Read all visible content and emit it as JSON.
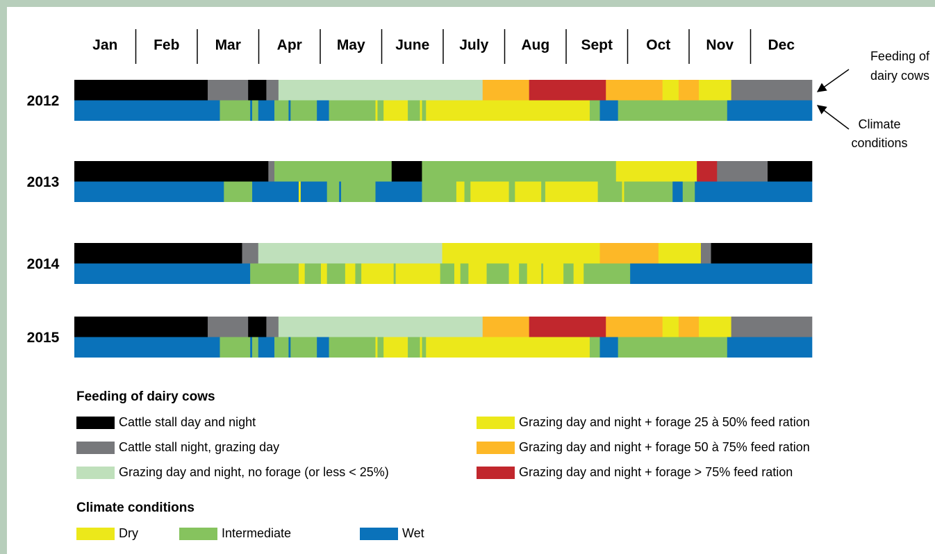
{
  "chart_data": {
    "type": "timeline",
    "months": [
      "Jan",
      "Feb",
      "Mar",
      "Apr",
      "May",
      "June",
      "July",
      "Aug",
      "Sept",
      "Oct",
      "Nov",
      "Dec"
    ],
    "xlim": [
      0,
      365
    ],
    "rows": [
      {
        "year": "2012",
        "feeding": [
          {
            "color": "#000000",
            "days": 66
          },
          {
            "color": "#77787b",
            "days": 20
          },
          {
            "color": "#000000",
            "days": 9
          },
          {
            "color": "#77787b",
            "days": 6
          },
          {
            "color": "#bfe0bb",
            "days": 101
          },
          {
            "color": "#fdb827",
            "days": 23
          },
          {
            "color": "#c1272d",
            "days": 38
          },
          {
            "color": "#fdb827",
            "days": 28
          },
          {
            "color": "#ece81a",
            "days": 8
          },
          {
            "color": "#fdb827",
            "days": 10
          },
          {
            "color": "#ece81a",
            "days": 16
          },
          {
            "color": "#77787b",
            "days": 40
          }
        ],
        "climate": [
          {
            "color": "#0a72ba",
            "days": 72
          },
          {
            "color": "#86c35e",
            "days": 15
          },
          {
            "color": "#0a72ba",
            "days": 1
          },
          {
            "color": "#86c35e",
            "days": 3
          },
          {
            "color": "#0a72ba",
            "days": 8
          },
          {
            "color": "#86c35e",
            "days": 7
          },
          {
            "color": "#0a72ba",
            "days": 1
          },
          {
            "color": "#86c35e",
            "days": 13
          },
          {
            "color": "#0a72ba",
            "days": 6
          },
          {
            "color": "#86c35e",
            "days": 23
          },
          {
            "color": "#ece81a",
            "days": 1
          },
          {
            "color": "#86c35e",
            "days": 3
          },
          {
            "color": "#ece81a",
            "days": 12
          },
          {
            "color": "#86c35e",
            "days": 6
          },
          {
            "color": "#ece81a",
            "days": 1
          },
          {
            "color": "#86c35e",
            "days": 2
          },
          {
            "color": "#ece81a",
            "days": 81
          },
          {
            "color": "#86c35e",
            "days": 5
          },
          {
            "color": "#0a72ba",
            "days": 9
          },
          {
            "color": "#86c35e",
            "days": 54
          },
          {
            "color": "#0a72ba",
            "days": 42
          }
        ]
      },
      {
        "year": "2013",
        "feeding": [
          {
            "color": "#000000",
            "days": 96
          },
          {
            "color": "#77787b",
            "days": 3
          },
          {
            "color": "#86c35e",
            "days": 58
          },
          {
            "color": "#000000",
            "days": 15
          },
          {
            "color": "#86c35e",
            "days": 96
          },
          {
            "color": "#ece81a",
            "days": 40
          },
          {
            "color": "#c1272d",
            "days": 10
          },
          {
            "color": "#77787b",
            "days": 25
          },
          {
            "color": "#000000",
            "days": 22
          }
        ],
        "climate": [
          {
            "color": "#0a72ba",
            "days": 74
          },
          {
            "color": "#86c35e",
            "days": 14
          },
          {
            "color": "#0a72ba",
            "days": 23
          },
          {
            "color": "#ece81a",
            "days": 1
          },
          {
            "color": "#0a72ba",
            "days": 13
          },
          {
            "color": "#86c35e",
            "days": 6
          },
          {
            "color": "#0a72ba",
            "days": 1
          },
          {
            "color": "#86c35e",
            "days": 17
          },
          {
            "color": "#0a72ba",
            "days": 23
          },
          {
            "color": "#86c35e",
            "days": 17
          },
          {
            "color": "#ece81a",
            "days": 4
          },
          {
            "color": "#86c35e",
            "days": 3
          },
          {
            "color": "#ece81a",
            "days": 19
          },
          {
            "color": "#86c35e",
            "days": 3
          },
          {
            "color": "#ece81a",
            "days": 13
          },
          {
            "color": "#86c35e",
            "days": 2
          },
          {
            "color": "#ece81a",
            "days": 26
          },
          {
            "color": "#86c35e",
            "days": 12
          },
          {
            "color": "#ece81a",
            "days": 1
          },
          {
            "color": "#86c35e",
            "days": 24
          },
          {
            "color": "#0a72ba",
            "days": 5
          },
          {
            "color": "#86c35e",
            "days": 6
          },
          {
            "color": "#0a72ba",
            "days": 58
          }
        ]
      },
      {
        "year": "2014",
        "feeding": [
          {
            "color": "#000000",
            "days": 83
          },
          {
            "color": "#77787b",
            "days": 8
          },
          {
            "color": "#bfe0bb",
            "days": 91
          },
          {
            "color": "#ece81a",
            "days": 78
          },
          {
            "color": "#fdb827",
            "days": 29
          },
          {
            "color": "#ece81a",
            "days": 21
          },
          {
            "color": "#77787b",
            "days": 5
          },
          {
            "color": "#000000",
            "days": 50
          }
        ],
        "climate": [
          {
            "color": "#0a72ba",
            "days": 87
          },
          {
            "color": "#86c35e",
            "days": 24
          },
          {
            "color": "#ece81a",
            "days": 3
          },
          {
            "color": "#86c35e",
            "days": 8
          },
          {
            "color": "#ece81a",
            "days": 3
          },
          {
            "color": "#86c35e",
            "days": 9
          },
          {
            "color": "#ece81a",
            "days": 5
          },
          {
            "color": "#86c35e",
            "days": 3
          },
          {
            "color": "#ece81a",
            "days": 16
          },
          {
            "color": "#86c35e",
            "days": 1
          },
          {
            "color": "#ece81a",
            "days": 22
          },
          {
            "color": "#86c35e",
            "days": 7
          },
          {
            "color": "#ece81a",
            "days": 3
          },
          {
            "color": "#86c35e",
            "days": 4
          },
          {
            "color": "#ece81a",
            "days": 9
          },
          {
            "color": "#86c35e",
            "days": 11
          },
          {
            "color": "#ece81a",
            "days": 5
          },
          {
            "color": "#86c35e",
            "days": 4
          },
          {
            "color": "#ece81a",
            "days": 7
          },
          {
            "color": "#86c35e",
            "days": 1
          },
          {
            "color": "#ece81a",
            "days": 10
          },
          {
            "color": "#86c35e",
            "days": 5
          },
          {
            "color": "#ece81a",
            "days": 5
          },
          {
            "color": "#86c35e",
            "days": 23
          },
          {
            "color": "#0a72ba",
            "days": 90
          }
        ]
      },
      {
        "year": "2015",
        "feeding": [
          {
            "color": "#000000",
            "days": 66
          },
          {
            "color": "#77787b",
            "days": 20
          },
          {
            "color": "#000000",
            "days": 9
          },
          {
            "color": "#77787b",
            "days": 6
          },
          {
            "color": "#bfe0bb",
            "days": 101
          },
          {
            "color": "#fdb827",
            "days": 23
          },
          {
            "color": "#c1272d",
            "days": 38
          },
          {
            "color": "#fdb827",
            "days": 28
          },
          {
            "color": "#ece81a",
            "days": 8
          },
          {
            "color": "#fdb827",
            "days": 10
          },
          {
            "color": "#ece81a",
            "days": 16
          },
          {
            "color": "#77787b",
            "days": 40
          }
        ],
        "climate": [
          {
            "color": "#0a72ba",
            "days": 72
          },
          {
            "color": "#86c35e",
            "days": 15
          },
          {
            "color": "#0a72ba",
            "days": 1
          },
          {
            "color": "#86c35e",
            "days": 3
          },
          {
            "color": "#0a72ba",
            "days": 8
          },
          {
            "color": "#86c35e",
            "days": 7
          },
          {
            "color": "#0a72ba",
            "days": 1
          },
          {
            "color": "#86c35e",
            "days": 13
          },
          {
            "color": "#0a72ba",
            "days": 6
          },
          {
            "color": "#86c35e",
            "days": 23
          },
          {
            "color": "#ece81a",
            "days": 1
          },
          {
            "color": "#86c35e",
            "days": 3
          },
          {
            "color": "#ece81a",
            "days": 12
          },
          {
            "color": "#86c35e",
            "days": 6
          },
          {
            "color": "#ece81a",
            "days": 1
          },
          {
            "color": "#86c35e",
            "days": 2
          },
          {
            "color": "#ece81a",
            "days": 81
          },
          {
            "color": "#86c35e",
            "days": 5
          },
          {
            "color": "#0a72ba",
            "days": 9
          },
          {
            "color": "#86c35e",
            "days": 54
          },
          {
            "color": "#0a72ba",
            "days": 42
          }
        ]
      }
    ],
    "annotations": {
      "feeding": [
        "Feeding of",
        "dairy cows"
      ],
      "climate": [
        "Climate",
        "conditions"
      ]
    },
    "legends": [
      {
        "title": "Feeding of dairy cows",
        "items": [
          {
            "name": "Cattle stall day and night",
            "color": "#000000"
          },
          {
            "name": "Cattle stall night, grazing day",
            "color": "#77787b"
          },
          {
            "name": "Grazing day and night, no forage (or less < 25%)",
            "color": "#bfe0bb"
          },
          {
            "name": "Grazing day and night + forage 25 à 50% feed ration",
            "color": "#ece81a"
          },
          {
            "name": "Grazing day and night + forage 50 à 75% feed ration",
            "color": "#fdb827"
          },
          {
            "name": "Grazing day and night + forage > 75% feed ration",
            "color": "#c1272d"
          }
        ]
      },
      {
        "title": "Climate conditions",
        "items": [
          {
            "name": "Dry",
            "color": "#ece81a"
          },
          {
            "name": "Intermediate",
            "color": "#86c35e"
          },
          {
            "name": "Wet",
            "color": "#0a72ba"
          }
        ]
      }
    ]
  }
}
